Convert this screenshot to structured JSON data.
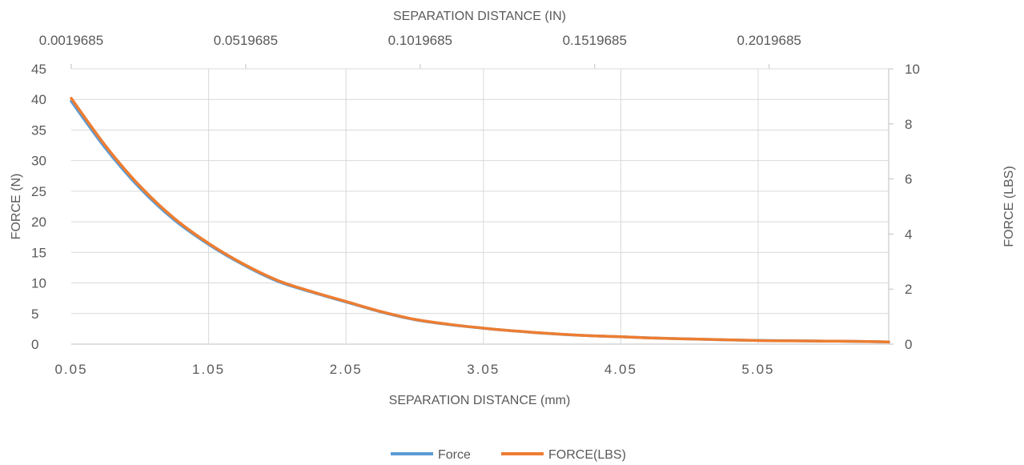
{
  "chart_data": {
    "type": "line",
    "x_bottom": {
      "label": "SEPARATION DISTANCE (mm)",
      "ticks": [
        "0.05",
        "1.05",
        "2.05",
        "3.05",
        "4.05",
        "5.05"
      ],
      "tick_values": [
        0.05,
        1.05,
        2.05,
        3.05,
        4.05,
        5.05
      ],
      "range": [
        0.05,
        6.0
      ]
    },
    "x_top": {
      "label": "SEPARATION DISTANCE (IN)",
      "ticks": [
        "0.0019685",
        "0.0519685",
        "0.1019685",
        "0.1519685",
        "0.2019685"
      ],
      "tick_values": [
        0.0019685,
        0.0519685,
        0.1019685,
        0.1519685,
        0.2019685
      ]
    },
    "y_left": {
      "label": "FORCE (N)",
      "ticks": [
        "0",
        "5",
        "10",
        "15",
        "20",
        "25",
        "30",
        "35",
        "40",
        "45"
      ],
      "tick_values": [
        0,
        5,
        10,
        15,
        20,
        25,
        30,
        35,
        40,
        45
      ],
      "range": [
        0,
        45
      ]
    },
    "y_right": {
      "label": "FORCE (LBS)",
      "ticks": [
        "0",
        "2",
        "4",
        "6",
        "8",
        "10"
      ],
      "tick_values": [
        0,
        2,
        4,
        6,
        8,
        10
      ],
      "range": [
        0,
        10
      ]
    },
    "grid": true,
    "legend_position": "bottom",
    "series": [
      {
        "name": "Force",
        "axis": "left",
        "color": "#5B9BD5",
        "x": [
          0.05,
          0.3,
          0.55,
          0.8,
          1.05,
          1.3,
          1.55,
          1.8,
          2.05,
          2.3,
          2.55,
          2.8,
          3.05,
          3.3,
          3.55,
          3.8,
          4.05,
          4.3,
          4.55,
          4.8,
          5.05,
          5.3,
          5.55,
          5.8,
          6.0
        ],
        "values": [
          39.7,
          32.0,
          25.5,
          20.3,
          16.3,
          13.0,
          10.3,
          8.5,
          6.9,
          5.3,
          4.0,
          3.2,
          2.6,
          2.1,
          1.7,
          1.4,
          1.2,
          1.0,
          0.85,
          0.7,
          0.6,
          0.55,
          0.5,
          0.45,
          0.35
        ]
      },
      {
        "name": "FORCE(LBS)",
        "axis": "right",
        "color": "#ED7D31",
        "x": [
          0.05,
          0.3,
          0.55,
          0.8,
          1.05,
          1.3,
          1.55,
          1.8,
          2.05,
          2.3,
          2.55,
          2.8,
          3.05,
          3.3,
          3.55,
          3.8,
          4.05,
          4.3,
          4.55,
          4.8,
          5.05,
          5.3,
          5.55,
          5.8,
          6.0
        ],
        "values": [
          8.93,
          7.2,
          5.74,
          4.57,
          3.66,
          2.92,
          2.32,
          1.91,
          1.55,
          1.19,
          0.9,
          0.72,
          0.58,
          0.47,
          0.38,
          0.31,
          0.27,
          0.22,
          0.19,
          0.16,
          0.13,
          0.12,
          0.11,
          0.1,
          0.08
        ]
      }
    ]
  }
}
